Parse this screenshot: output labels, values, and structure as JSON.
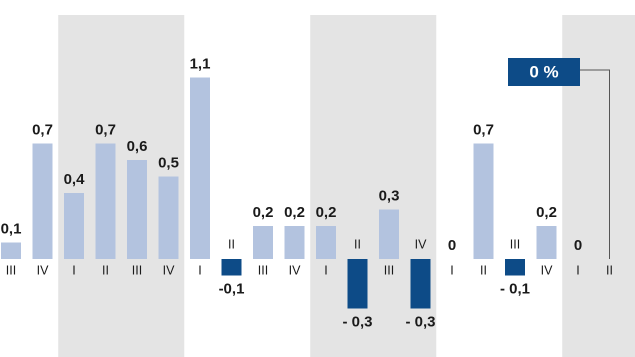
{
  "chart_data": {
    "type": "bar",
    "categories": [
      "III",
      "IV",
      "I",
      "II",
      "III",
      "IV",
      "I",
      "II",
      "III",
      "IV",
      "I",
      "II",
      "III",
      "IV",
      "I",
      "II",
      "III",
      "IV",
      "I",
      "II"
    ],
    "values": [
      0.1,
      0.7,
      0.4,
      0.7,
      0.6,
      0.5,
      1.1,
      -0.1,
      0.2,
      0.2,
      0.2,
      -0.3,
      0.3,
      -0.3,
      0,
      0.7,
      -0.1,
      0.2,
      0,
      0
    ],
    "value_labels": [
      "0,1",
      "0,7",
      "0,4",
      "0,7",
      "0,6",
      "0,5",
      "1,1",
      "-0,1",
      "0,2",
      "0,2",
      "0,2",
      "- 0,3",
      "0,3",
      "- 0,3",
      "0",
      "0,7",
      "- 0,1",
      "0,2",
      "0",
      "0 %"
    ],
    "color": "#b3c3df",
    "negative_color": "#0d4b87",
    "ylim": [
      -0.5,
      1.4
    ]
  }
}
